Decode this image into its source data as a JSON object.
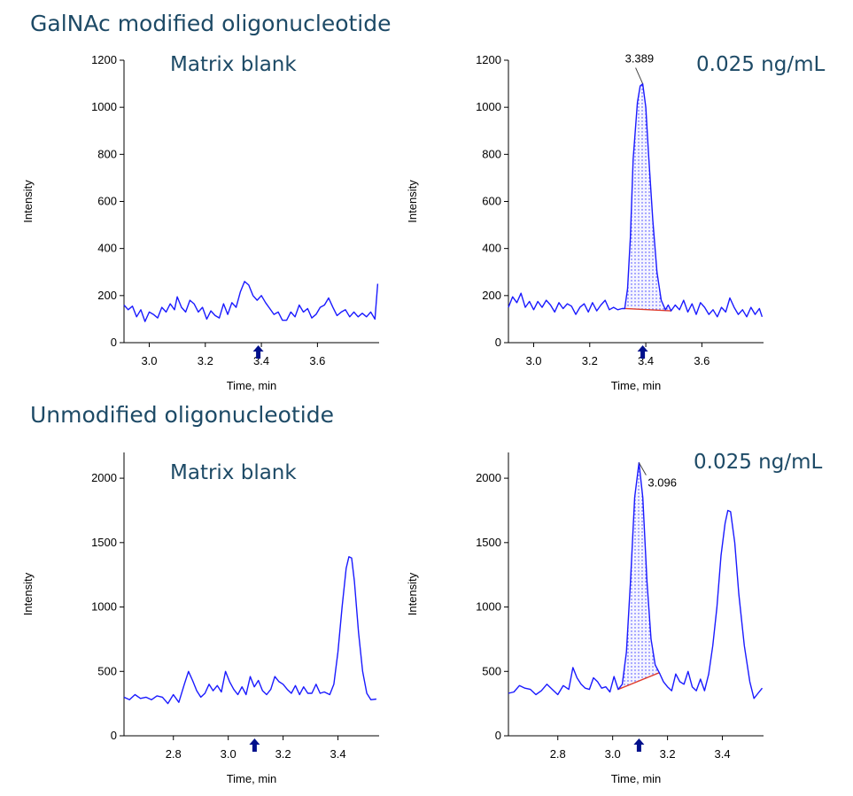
{
  "sections": {
    "top_title": "GalNAc modified oligonucleotide",
    "bottom_title": "Unmodified oligonucleotide"
  },
  "panels": {
    "p1_label": "Matrix blank",
    "p2_label": "0.025 ng/mL",
    "p3_label": "Matrix blank",
    "p4_label": "0.025 ng/mL"
  },
  "colors": {
    "trace": "#1a1aff",
    "baseline": "#e03a2a",
    "arrow": "#00108c",
    "text": "#1d4a66"
  },
  "chart_data": [
    {
      "type": "line",
      "xlabel": "Time, min",
      "ylabel": "Intensity",
      "xlim": [
        2.91,
        3.82
      ],
      "ylim": [
        0,
        1200
      ],
      "xticks": [
        "3.0",
        "3.2",
        "3.4",
        "3.6"
      ],
      "yticks": [
        "0",
        "200",
        "400",
        "600",
        "800",
        "1000",
        "1200"
      ],
      "marker_x": 3.389,
      "series": [
        {
          "points": [
            [
              2.91,
              160
            ],
            [
              2.925,
              140
            ],
            [
              2.94,
              155
            ],
            [
              2.955,
              110
            ],
            [
              2.97,
              140
            ],
            [
              2.985,
              90
            ],
            [
              3.0,
              130
            ],
            [
              3.015,
              120
            ],
            [
              3.03,
              105
            ],
            [
              3.045,
              150
            ],
            [
              3.06,
              130
            ],
            [
              3.075,
              165
            ],
            [
              3.09,
              140
            ],
            [
              3.1,
              195
            ],
            [
              3.115,
              150
            ],
            [
              3.13,
              130
            ],
            [
              3.145,
              180
            ],
            [
              3.16,
              165
            ],
            [
              3.175,
              130
            ],
            [
              3.19,
              150
            ],
            [
              3.205,
              100
            ],
            [
              3.22,
              135
            ],
            [
              3.235,
              115
            ],
            [
              3.25,
              105
            ],
            [
              3.265,
              165
            ],
            [
              3.28,
              120
            ],
            [
              3.295,
              170
            ],
            [
              3.31,
              150
            ],
            [
              3.325,
              215
            ],
            [
              3.34,
              260
            ],
            [
              3.355,
              245
            ],
            [
              3.37,
              200
            ],
            [
              3.385,
              180
            ],
            [
              3.4,
              200
            ],
            [
              3.415,
              170
            ],
            [
              3.43,
              145
            ],
            [
              3.445,
              120
            ],
            [
              3.46,
              130
            ],
            [
              3.475,
              95
            ],
            [
              3.49,
              95
            ],
            [
              3.505,
              130
            ],
            [
              3.52,
              110
            ],
            [
              3.535,
              160
            ],
            [
              3.55,
              130
            ],
            [
              3.565,
              145
            ],
            [
              3.58,
              105
            ],
            [
              3.595,
              120
            ],
            [
              3.61,
              150
            ],
            [
              3.625,
              160
            ],
            [
              3.64,
              190
            ],
            [
              3.655,
              150
            ],
            [
              3.67,
              115
            ],
            [
              3.685,
              130
            ],
            [
              3.7,
              140
            ],
            [
              3.715,
              110
            ],
            [
              3.73,
              130
            ],
            [
              3.745,
              110
            ],
            [
              3.76,
              125
            ],
            [
              3.775,
              110
            ],
            [
              3.79,
              130
            ],
            [
              3.805,
              100
            ],
            [
              3.815,
              250
            ]
          ]
        }
      ]
    },
    {
      "type": "line",
      "xlabel": "Time, min",
      "ylabel": "Intensity",
      "xlim": [
        2.91,
        3.82
      ],
      "ylim": [
        0,
        1200
      ],
      "xticks": [
        "3.0",
        "3.2",
        "3.4",
        "3.6"
      ],
      "yticks": [
        "0",
        "200",
        "400",
        "600",
        "800",
        "1000",
        "1200"
      ],
      "marker_x": 3.389,
      "peak_label": "3.389",
      "peak": {
        "x": 3.389,
        "y": 1100,
        "start": [
          3.325,
          145
        ],
        "end": [
          3.49,
          135
        ]
      },
      "series": [
        {
          "points": [
            [
              2.91,
              150
            ],
            [
              2.925,
              195
            ],
            [
              2.94,
              170
            ],
            [
              2.955,
              210
            ],
            [
              2.97,
              150
            ],
            [
              2.985,
              175
            ],
            [
              3.0,
              140
            ],
            [
              3.015,
              175
            ],
            [
              3.03,
              150
            ],
            [
              3.045,
              180
            ],
            [
              3.06,
              160
            ],
            [
              3.075,
              130
            ],
            [
              3.09,
              170
            ],
            [
              3.105,
              145
            ],
            [
              3.12,
              165
            ],
            [
              3.135,
              155
            ],
            [
              3.15,
              120
            ],
            [
              3.165,
              150
            ],
            [
              3.18,
              165
            ],
            [
              3.195,
              130
            ],
            [
              3.21,
              170
            ],
            [
              3.225,
              135
            ],
            [
              3.24,
              160
            ],
            [
              3.255,
              180
            ],
            [
              3.27,
              140
            ],
            [
              3.285,
              150
            ],
            [
              3.3,
              140
            ],
            [
              3.315,
              145
            ],
            [
              3.325,
              145
            ],
            [
              3.335,
              230
            ],
            [
              3.345,
              450
            ],
            [
              3.355,
              780
            ],
            [
              3.37,
              1020
            ],
            [
              3.38,
              1090
            ],
            [
              3.389,
              1100
            ],
            [
              3.4,
              1000
            ],
            [
              3.41,
              800
            ],
            [
              3.425,
              520
            ],
            [
              3.44,
              300
            ],
            [
              3.455,
              180
            ],
            [
              3.47,
              140
            ],
            [
              3.48,
              160
            ],
            [
              3.49,
              135
            ],
            [
              3.505,
              160
            ],
            [
              3.52,
              140
            ],
            [
              3.535,
              180
            ],
            [
              3.55,
              130
            ],
            [
              3.565,
              165
            ],
            [
              3.58,
              120
            ],
            [
              3.595,
              170
            ],
            [
              3.61,
              150
            ],
            [
              3.625,
              120
            ],
            [
              3.64,
              140
            ],
            [
              3.655,
              110
            ],
            [
              3.67,
              150
            ],
            [
              3.685,
              130
            ],
            [
              3.7,
              190
            ],
            [
              3.715,
              150
            ],
            [
              3.73,
              120
            ],
            [
              3.745,
              140
            ],
            [
              3.76,
              110
            ],
            [
              3.775,
              150
            ],
            [
              3.79,
              120
            ],
            [
              3.805,
              145
            ],
            [
              3.815,
              110
            ]
          ]
        }
      ]
    },
    {
      "type": "line",
      "xlabel": "Time, min",
      "ylabel": "Intensity",
      "xlim": [
        2.62,
        3.55
      ],
      "ylim": [
        0,
        2200
      ],
      "xticks": [
        "2.8",
        "3.0",
        "3.2",
        "3.4"
      ],
      "yticks": [
        "0",
        "500",
        "1000",
        "1500",
        "2000"
      ],
      "marker_x": 3.096,
      "series": [
        {
          "points": [
            [
              2.62,
              300
            ],
            [
              2.64,
              280
            ],
            [
              2.66,
              320
            ],
            [
              2.68,
              290
            ],
            [
              2.7,
              300
            ],
            [
              2.72,
              280
            ],
            [
              2.74,
              310
            ],
            [
              2.76,
              300
            ],
            [
              2.78,
              250
            ],
            [
              2.8,
              320
            ],
            [
              2.82,
              260
            ],
            [
              2.84,
              400
            ],
            [
              2.855,
              500
            ],
            [
              2.87,
              430
            ],
            [
              2.885,
              350
            ],
            [
              2.9,
              300
            ],
            [
              2.915,
              330
            ],
            [
              2.93,
              400
            ],
            [
              2.945,
              350
            ],
            [
              2.96,
              390
            ],
            [
              2.975,
              340
            ],
            [
              2.99,
              500
            ],
            [
              3.005,
              420
            ],
            [
              3.02,
              360
            ],
            [
              3.035,
              320
            ],
            [
              3.05,
              380
            ],
            [
              3.065,
              320
            ],
            [
              3.08,
              460
            ],
            [
              3.095,
              380
            ],
            [
              3.11,
              430
            ],
            [
              3.125,
              350
            ],
            [
              3.14,
              320
            ],
            [
              3.155,
              360
            ],
            [
              3.17,
              460
            ],
            [
              3.185,
              420
            ],
            [
              3.2,
              400
            ],
            [
              3.215,
              360
            ],
            [
              3.23,
              330
            ],
            [
              3.245,
              390
            ],
            [
              3.26,
              320
            ],
            [
              3.275,
              380
            ],
            [
              3.29,
              330
            ],
            [
              3.305,
              330
            ],
            [
              3.32,
              400
            ],
            [
              3.335,
              330
            ],
            [
              3.35,
              340
            ],
            [
              3.37,
              320
            ],
            [
              3.385,
              400
            ],
            [
              3.4,
              650
            ],
            [
              3.415,
              1000
            ],
            [
              3.43,
              1300
            ],
            [
              3.44,
              1390
            ],
            [
              3.45,
              1380
            ],
            [
              3.46,
              1200
            ],
            [
              3.475,
              800
            ],
            [
              3.49,
              500
            ],
            [
              3.505,
              330
            ],
            [
              3.52,
              280
            ],
            [
              3.54,
              285
            ]
          ]
        }
      ]
    },
    {
      "type": "line",
      "xlabel": "Time, min",
      "ylabel": "Intensity",
      "xlim": [
        2.62,
        3.55
      ],
      "ylim": [
        0,
        2200
      ],
      "xticks": [
        "2.8",
        "3.0",
        "3.2",
        "3.4"
      ],
      "yticks": [
        "0",
        "500",
        "1000",
        "1500",
        "2000"
      ],
      "marker_x": 3.096,
      "peak_label": "3.096",
      "peak": {
        "x": 3.096,
        "y": 2120,
        "start": [
          3.02,
          360
        ],
        "end": [
          3.17,
          490
        ]
      },
      "series": [
        {
          "points": [
            [
              2.62,
              330
            ],
            [
              2.64,
              340
            ],
            [
              2.66,
              390
            ],
            [
              2.68,
              370
            ],
            [
              2.7,
              360
            ],
            [
              2.72,
              320
            ],
            [
              2.74,
              350
            ],
            [
              2.76,
              400
            ],
            [
              2.78,
              360
            ],
            [
              2.8,
              320
            ],
            [
              2.82,
              390
            ],
            [
              2.84,
              360
            ],
            [
              2.855,
              530
            ],
            [
              2.87,
              450
            ],
            [
              2.885,
              400
            ],
            [
              2.9,
              370
            ],
            [
              2.915,
              360
            ],
            [
              2.93,
              450
            ],
            [
              2.945,
              420
            ],
            [
              2.96,
              370
            ],
            [
              2.975,
              380
            ],
            [
              2.99,
              340
            ],
            [
              3.005,
              460
            ],
            [
              3.02,
              360
            ],
            [
              3.035,
              400
            ],
            [
              3.05,
              650
            ],
            [
              3.065,
              1200
            ],
            [
              3.08,
              1850
            ],
            [
              3.096,
              2120
            ],
            [
              3.11,
              1850
            ],
            [
              3.125,
              1200
            ],
            [
              3.14,
              750
            ],
            [
              3.155,
              550
            ],
            [
              3.17,
              490
            ],
            [
              3.185,
              420
            ],
            [
              3.2,
              380
            ],
            [
              3.215,
              350
            ],
            [
              3.23,
              480
            ],
            [
              3.245,
              420
            ],
            [
              3.26,
              400
            ],
            [
              3.275,
              500
            ],
            [
              3.29,
              380
            ],
            [
              3.305,
              350
            ],
            [
              3.32,
              440
            ],
            [
              3.335,
              350
            ],
            [
              3.35,
              480
            ],
            [
              3.365,
              700
            ],
            [
              3.38,
              1000
            ],
            [
              3.395,
              1400
            ],
            [
              3.41,
              1650
            ],
            [
              3.42,
              1750
            ],
            [
              3.43,
              1740
            ],
            [
              3.445,
              1500
            ],
            [
              3.46,
              1100
            ],
            [
              3.48,
              700
            ],
            [
              3.5,
              420
            ],
            [
              3.515,
              290
            ],
            [
              3.53,
              330
            ],
            [
              3.545,
              370
            ]
          ]
        }
      ]
    }
  ]
}
